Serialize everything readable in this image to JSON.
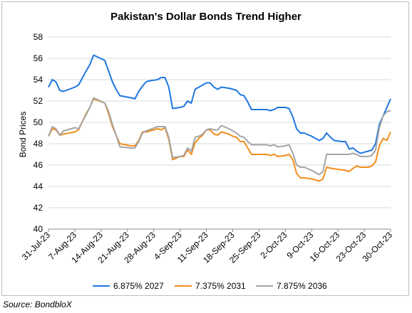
{
  "chart_data": {
    "type": "line",
    "title": "Pakistan's Dollar Bonds Trend Higher",
    "ylabel": "Bond Prices",
    "xlabel": "",
    "ylim": [
      40,
      58
    ],
    "yticks": [
      40,
      42,
      44,
      46,
      48,
      50,
      52,
      54,
      56,
      58
    ],
    "xlim": [
      "2023-07-31",
      "2023-10-30"
    ],
    "xticks": [
      "31-Jul-23",
      "7-Aug-23",
      "14-Aug-23",
      "21-Aug-23",
      "28-Aug-23",
      "4-Sep-23",
      "11-Sep-23",
      "18-Sep-23",
      "25-Sep-23",
      "2-Oct-23",
      "9-Oct-23",
      "16-Oct-23",
      "23-Oct-23",
      "30-Oct-23"
    ],
    "grid": "horizontal",
    "legend": "bottom",
    "source": "Source: BondbloX",
    "series": [
      {
        "name": "6.875% 2027",
        "color": "#1f77e0",
        "points": [
          [
            "2023-07-31",
            53.3
          ],
          [
            "2023-08-01",
            54.0
          ],
          [
            "2023-08-02",
            53.8
          ],
          [
            "2023-08-03",
            53.0
          ],
          [
            "2023-08-04",
            52.9
          ],
          [
            "2023-08-07",
            53.3
          ],
          [
            "2023-08-08",
            53.5
          ],
          [
            "2023-08-10",
            54.8
          ],
          [
            "2023-08-11",
            55.4
          ],
          [
            "2023-08-12",
            56.3
          ],
          [
            "2023-08-15",
            55.8
          ],
          [
            "2023-08-16",
            54.8
          ],
          [
            "2023-08-17",
            53.8
          ],
          [
            "2023-08-18",
            53.1
          ],
          [
            "2023-08-19",
            52.5
          ],
          [
            "2023-08-22",
            52.3
          ],
          [
            "2023-08-23",
            52.2
          ],
          [
            "2023-08-24",
            52.9
          ],
          [
            "2023-08-25",
            53.4
          ],
          [
            "2023-08-26",
            53.8
          ],
          [
            "2023-08-27",
            53.9
          ],
          [
            "2023-08-29",
            54.0
          ],
          [
            "2023-08-30",
            54.2
          ],
          [
            "2023-08-31",
            54.2
          ],
          [
            "2023-09-01",
            53.3
          ],
          [
            "2023-09-02",
            51.3
          ],
          [
            "2023-09-04",
            51.4
          ],
          [
            "2023-09-05",
            51.5
          ],
          [
            "2023-09-06",
            52.0
          ],
          [
            "2023-09-07",
            51.8
          ],
          [
            "2023-09-08",
            53.1
          ],
          [
            "2023-09-09",
            53.3
          ],
          [
            "2023-09-10",
            53.5
          ],
          [
            "2023-09-11",
            53.7
          ],
          [
            "2023-09-12",
            53.7
          ],
          [
            "2023-09-13",
            53.3
          ],
          [
            "2023-09-14",
            53.1
          ],
          [
            "2023-09-15",
            53.3
          ],
          [
            "2023-09-17",
            53.2
          ],
          [
            "2023-09-18",
            53.1
          ],
          [
            "2023-09-19",
            53.0
          ],
          [
            "2023-09-20",
            52.6
          ],
          [
            "2023-09-21",
            52.5
          ],
          [
            "2023-09-22",
            51.9
          ],
          [
            "2023-09-23",
            51.2
          ],
          [
            "2023-09-27",
            51.2
          ],
          [
            "2023-09-28",
            51.1
          ],
          [
            "2023-09-29",
            51.2
          ],
          [
            "2023-09-30",
            51.4
          ],
          [
            "2023-10-02",
            51.4
          ],
          [
            "2023-10-03",
            51.3
          ],
          [
            "2023-10-04",
            50.5
          ],
          [
            "2023-10-05",
            49.4
          ],
          [
            "2023-10-06",
            49.0
          ],
          [
            "2023-10-07",
            49.0
          ],
          [
            "2023-10-09",
            48.7
          ],
          [
            "2023-10-10",
            48.5
          ],
          [
            "2023-10-11",
            48.3
          ],
          [
            "2023-10-12",
            48.5
          ],
          [
            "2023-10-13",
            49.0
          ],
          [
            "2023-10-14",
            48.6
          ],
          [
            "2023-10-15",
            48.3
          ],
          [
            "2023-10-17",
            48.2
          ],
          [
            "2023-10-18",
            48.2
          ],
          [
            "2023-10-19",
            47.5
          ],
          [
            "2023-10-20",
            47.6
          ],
          [
            "2023-10-21",
            47.3
          ],
          [
            "2023-10-22",
            47.1
          ],
          [
            "2023-10-24",
            47.3
          ],
          [
            "2023-10-25",
            47.4
          ],
          [
            "2023-10-26",
            48.0
          ],
          [
            "2023-10-27",
            49.8
          ],
          [
            "2023-10-28",
            50.6
          ],
          [
            "2023-10-30",
            52.2
          ]
        ]
      },
      {
        "name": "7.375% 2031",
        "color": "#f28e1c",
        "points": [
          [
            "2023-07-31",
            48.7
          ],
          [
            "2023-08-01",
            49.4
          ],
          [
            "2023-08-02",
            49.3
          ],
          [
            "2023-08-03",
            48.8
          ],
          [
            "2023-08-04",
            48.9
          ],
          [
            "2023-08-07",
            49.1
          ],
          [
            "2023-08-08",
            49.3
          ],
          [
            "2023-08-10",
            50.8
          ],
          [
            "2023-08-11",
            51.4
          ],
          [
            "2023-08-12",
            52.2
          ],
          [
            "2023-08-15",
            51.8
          ],
          [
            "2023-08-16",
            50.8
          ],
          [
            "2023-08-17",
            49.6
          ],
          [
            "2023-08-18",
            48.8
          ],
          [
            "2023-08-19",
            48.0
          ],
          [
            "2023-08-22",
            47.8
          ],
          [
            "2023-08-23",
            47.8
          ],
          [
            "2023-08-24",
            48.3
          ],
          [
            "2023-08-25",
            49.1
          ],
          [
            "2023-08-26",
            49.1
          ],
          [
            "2023-08-29",
            49.4
          ],
          [
            "2023-08-30",
            49.3
          ],
          [
            "2023-08-31",
            49.5
          ],
          [
            "2023-09-01",
            48.4
          ],
          [
            "2023-09-02",
            46.5
          ],
          [
            "2023-09-04",
            46.8
          ],
          [
            "2023-09-05",
            46.8
          ],
          [
            "2023-09-06",
            47.4
          ],
          [
            "2023-09-07",
            47.0
          ],
          [
            "2023-09-08",
            48.1
          ],
          [
            "2023-09-09",
            48.5
          ],
          [
            "2023-09-10",
            48.8
          ],
          [
            "2023-09-11",
            49.3
          ],
          [
            "2023-09-12",
            49.3
          ],
          [
            "2023-09-13",
            48.9
          ],
          [
            "2023-09-14",
            48.8
          ],
          [
            "2023-09-15",
            49.1
          ],
          [
            "2023-09-17",
            48.9
          ],
          [
            "2023-09-18",
            48.7
          ],
          [
            "2023-09-19",
            48.6
          ],
          [
            "2023-09-20",
            48.2
          ],
          [
            "2023-09-21",
            48.2
          ],
          [
            "2023-09-22",
            47.6
          ],
          [
            "2023-09-23",
            47.0
          ],
          [
            "2023-09-27",
            47.0
          ],
          [
            "2023-09-28",
            46.9
          ],
          [
            "2023-09-29",
            47.0
          ],
          [
            "2023-09-30",
            46.8
          ],
          [
            "2023-10-02",
            46.9
          ],
          [
            "2023-10-03",
            47.0
          ],
          [
            "2023-10-04",
            46.5
          ],
          [
            "2023-10-05",
            45.2
          ],
          [
            "2023-10-06",
            44.8
          ],
          [
            "2023-10-07",
            44.8
          ],
          [
            "2023-10-09",
            44.7
          ],
          [
            "2023-10-10",
            44.6
          ],
          [
            "2023-10-11",
            44.5
          ],
          [
            "2023-10-12",
            44.7
          ],
          [
            "2023-10-13",
            45.8
          ],
          [
            "2023-10-14",
            45.7
          ],
          [
            "2023-10-18",
            45.5
          ],
          [
            "2023-10-19",
            45.4
          ],
          [
            "2023-10-20",
            45.7
          ],
          [
            "2023-10-21",
            45.9
          ],
          [
            "2023-10-22",
            45.8
          ],
          [
            "2023-10-24",
            45.8
          ],
          [
            "2023-10-25",
            45.9
          ],
          [
            "2023-10-26",
            46.3
          ],
          [
            "2023-10-27",
            47.8
          ],
          [
            "2023-10-28",
            48.5
          ],
          [
            "2023-10-29",
            48.3
          ],
          [
            "2023-10-30",
            49.1
          ]
        ]
      },
      {
        "name": "7.875% 2036",
        "color": "#a5a5a5",
        "points": [
          [
            "2023-07-31",
            48.7
          ],
          [
            "2023-08-01",
            49.6
          ],
          [
            "2023-08-02",
            49.4
          ],
          [
            "2023-08-03",
            48.8
          ],
          [
            "2023-08-04",
            49.2
          ],
          [
            "2023-08-07",
            49.5
          ],
          [
            "2023-08-08",
            49.4
          ],
          [
            "2023-08-10",
            50.7
          ],
          [
            "2023-08-11",
            51.4
          ],
          [
            "2023-08-12",
            52.3
          ],
          [
            "2023-08-15",
            51.8
          ],
          [
            "2023-08-16",
            51.0
          ],
          [
            "2023-08-17",
            49.8
          ],
          [
            "2023-08-18",
            48.8
          ],
          [
            "2023-08-19",
            47.7
          ],
          [
            "2023-08-22",
            47.6
          ],
          [
            "2023-08-23",
            47.6
          ],
          [
            "2023-08-24",
            48.2
          ],
          [
            "2023-08-25",
            49.0
          ],
          [
            "2023-08-26",
            49.2
          ],
          [
            "2023-08-29",
            49.6
          ],
          [
            "2023-08-30",
            49.6
          ],
          [
            "2023-08-31",
            49.6
          ],
          [
            "2023-09-01",
            48.6
          ],
          [
            "2023-09-02",
            46.7
          ],
          [
            "2023-09-04",
            46.8
          ],
          [
            "2023-09-05",
            46.9
          ],
          [
            "2023-09-06",
            47.6
          ],
          [
            "2023-09-07",
            47.3
          ],
          [
            "2023-09-08",
            48.6
          ],
          [
            "2023-09-09",
            48.7
          ],
          [
            "2023-09-10",
            48.9
          ],
          [
            "2023-09-11",
            49.3
          ],
          [
            "2023-09-12",
            49.4
          ],
          [
            "2023-09-13",
            49.3
          ],
          [
            "2023-09-14",
            49.3
          ],
          [
            "2023-09-15",
            49.7
          ],
          [
            "2023-09-17",
            49.4
          ],
          [
            "2023-09-18",
            49.2
          ],
          [
            "2023-09-19",
            49.0
          ],
          [
            "2023-09-20",
            48.7
          ],
          [
            "2023-09-21",
            48.6
          ],
          [
            "2023-09-22",
            48.2
          ],
          [
            "2023-09-23",
            47.9
          ],
          [
            "2023-09-27",
            47.9
          ],
          [
            "2023-09-28",
            47.8
          ],
          [
            "2023-09-29",
            47.9
          ],
          [
            "2023-09-30",
            47.7
          ],
          [
            "2023-10-02",
            47.8
          ],
          [
            "2023-10-03",
            47.9
          ],
          [
            "2023-10-04",
            47.1
          ],
          [
            "2023-10-05",
            46.0
          ],
          [
            "2023-10-06",
            45.8
          ],
          [
            "2023-10-07",
            45.8
          ],
          [
            "2023-10-09",
            45.5
          ],
          [
            "2023-10-10",
            45.3
          ],
          [
            "2023-10-11",
            45.1
          ],
          [
            "2023-10-12",
            45.4
          ],
          [
            "2023-10-13",
            47.0
          ],
          [
            "2023-10-14",
            47.0
          ],
          [
            "2023-10-18",
            47.0
          ],
          [
            "2023-10-19",
            47.0
          ],
          [
            "2023-10-20",
            47.1
          ],
          [
            "2023-10-21",
            47.0
          ],
          [
            "2023-10-22",
            46.8
          ],
          [
            "2023-10-24",
            46.8
          ],
          [
            "2023-10-25",
            46.9
          ],
          [
            "2023-10-26",
            47.4
          ],
          [
            "2023-10-27",
            49.5
          ],
          [
            "2023-10-28",
            50.6
          ],
          [
            "2023-10-29",
            51.0
          ],
          [
            "2023-10-30",
            51.1
          ]
        ]
      }
    ]
  }
}
